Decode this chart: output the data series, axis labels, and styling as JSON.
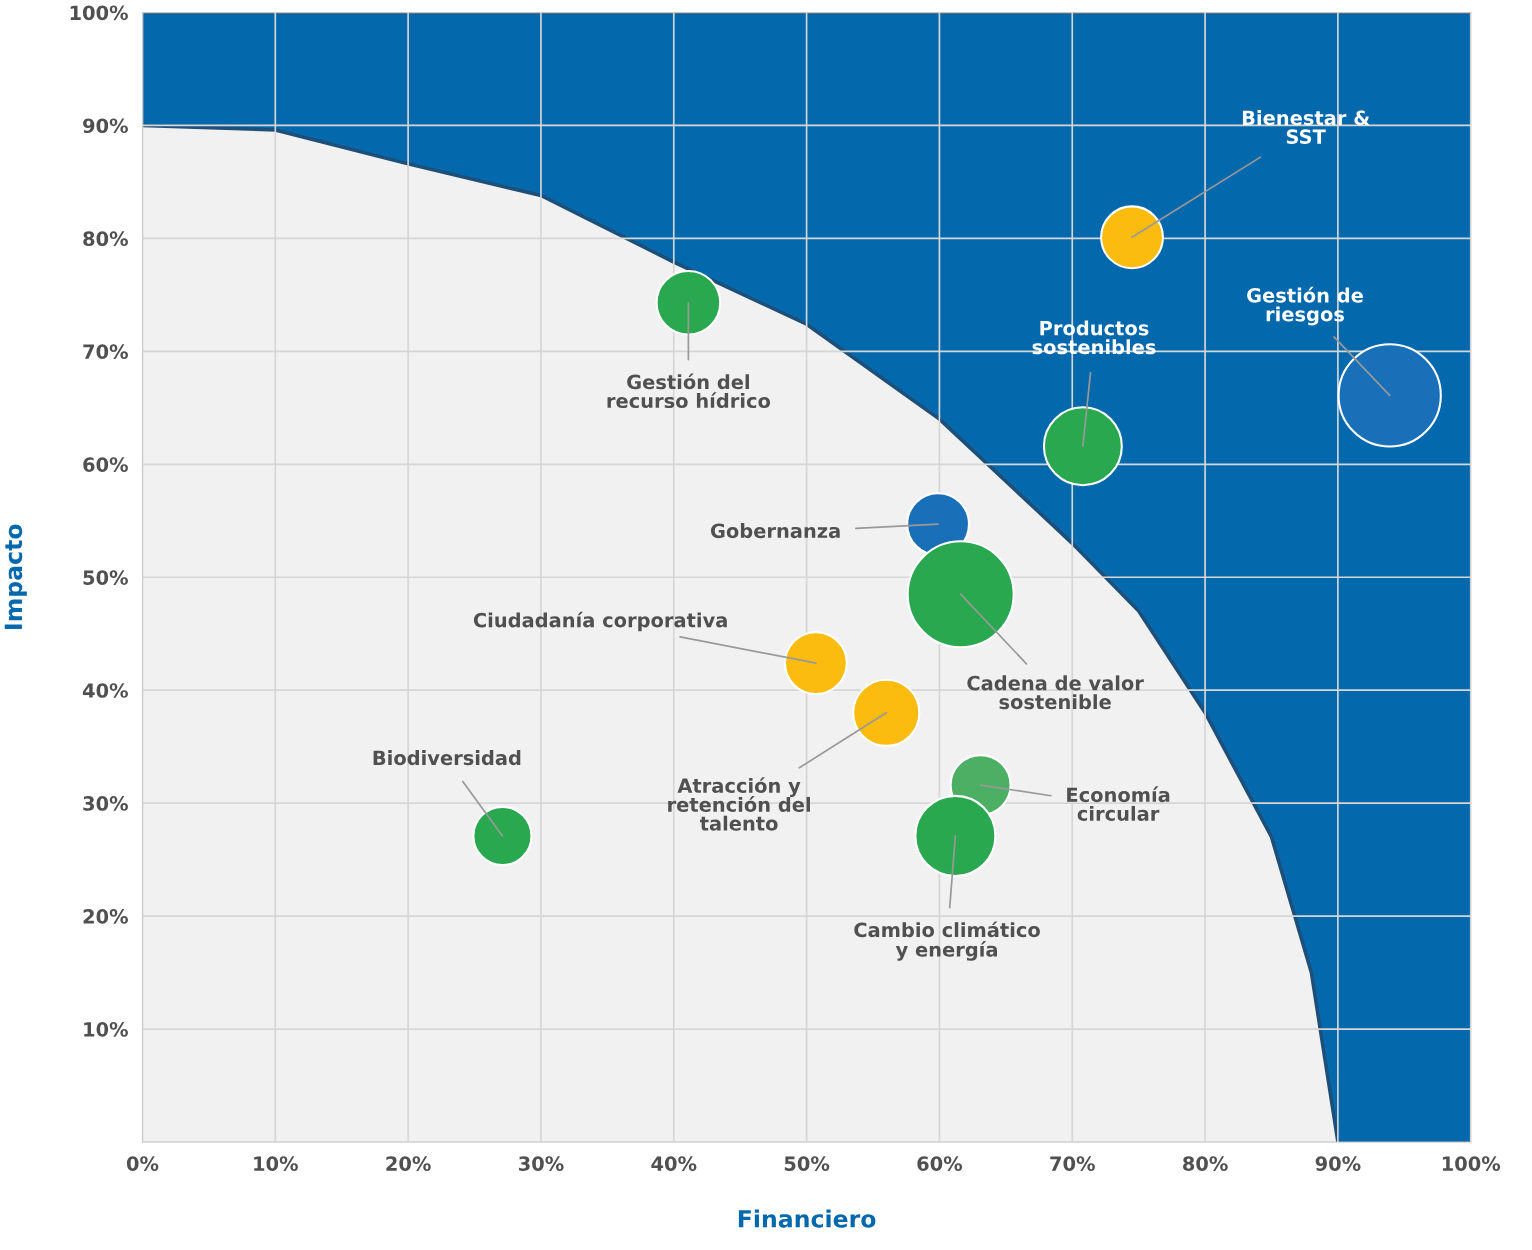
{
  "chart_data": {
    "type": "bubble",
    "xlabel": "Financiero",
    "ylabel": "Impacto",
    "xlim": [
      0,
      100
    ],
    "ylim": [
      0,
      100
    ],
    "xticks": [
      {
        "value": 0,
        "label": "0%"
      },
      {
        "value": 10,
        "label": "10%"
      },
      {
        "value": 20,
        "label": "20%"
      },
      {
        "value": 30,
        "label": "30%"
      },
      {
        "value": 40,
        "label": "40%"
      },
      {
        "value": 50,
        "label": "50%"
      },
      {
        "value": 60,
        "label": "60%"
      },
      {
        "value": 70,
        "label": "70%"
      },
      {
        "value": 80,
        "label": "80%"
      },
      {
        "value": 90,
        "label": "90%"
      },
      {
        "value": 100,
        "label": "100%"
      }
    ],
    "yticks": [
      {
        "value": 10,
        "label": "10%"
      },
      {
        "value": 20,
        "label": "20%"
      },
      {
        "value": 30,
        "label": "30%"
      },
      {
        "value": 40,
        "label": "40%"
      },
      {
        "value": 50,
        "label": "50%"
      },
      {
        "value": 60,
        "label": "60%"
      },
      {
        "value": 70,
        "label": "70%"
      },
      {
        "value": 80,
        "label": "80%"
      },
      {
        "value": 90,
        "label": "90%"
      },
      {
        "value": 100,
        "label": "100%"
      }
    ],
    "grid": true,
    "legend": false,
    "series": [
      {
        "type": "area",
        "color": "#0468ad",
        "x": [
          0,
          100
        ],
        "values": [
          100,
          100
        ]
      },
      {
        "type": "area",
        "color": "#f1f1f1",
        "x": [
          0,
          10,
          20,
          30,
          40,
          50,
          60,
          70,
          75,
          80,
          85,
          88,
          90
        ],
        "values": [
          90,
          89.6,
          86.6,
          83.8,
          77.9,
          72.4,
          64,
          53,
          47,
          38,
          27,
          15,
          0
        ]
      },
      {
        "name": "Gestión del\nrecurso hídrico",
        "color": "#2aa84f",
        "x": [
          41.1
        ],
        "values": [
          74.3
        ],
        "sizes": [
          0.36
        ]
      },
      {
        "name": "Bienestar &\nSST",
        "color": "#fbbc0f",
        "x": [
          74.5
        ],
        "values": [
          80.1
        ],
        "sizes": [
          0.34
        ]
      },
      {
        "name": "Gestión de\nriesgos",
        "color": "#1a6fb9",
        "x": [
          93.9
        ],
        "values": [
          66.1
        ],
        "sizes": [
          0.93
        ]
      },
      {
        "name": "Productos\nsostenibles",
        "color": "#2aa84f",
        "x": [
          70.8
        ],
        "values": [
          61.6
        ],
        "sizes": [
          0.54
        ]
      },
      {
        "name": "Gobernanza",
        "color": "#1a6fb9",
        "x": [
          59.9
        ],
        "values": [
          54.7
        ],
        "sizes": [
          0.34
        ]
      },
      {
        "name": "Cadena de valor\nsostenible",
        "color": "#2aa84f",
        "x": [
          61.6
        ],
        "values": [
          48.5
        ],
        "sizes": [
          1
        ]
      },
      {
        "name": "Ciudadanía corporativa",
        "color": "#fbbc0f",
        "x": [
          50.7
        ],
        "values": [
          42.4
        ],
        "sizes": [
          0.34
        ]
      },
      {
        "name": "Atracción y\nretención del\ntalento",
        "color": "#fbbc0f",
        "x": [
          56.0
        ],
        "values": [
          38.0
        ],
        "sizes": [
          0.39
        ]
      },
      {
        "name": "Economía\ncircular",
        "color": "#4caf63",
        "x": [
          63.1
        ],
        "values": [
          31.6
        ],
        "sizes": [
          0.32
        ]
      },
      {
        "name": "Cambio climático\ny energía",
        "color": "#2aa84f",
        "x": [
          61.2
        ],
        "values": [
          27.1
        ],
        "sizes": [
          0.57
        ]
      },
      {
        "name": "Biodiversidad",
        "color": "#2aa84f",
        "x": [
          27.1
        ],
        "values": [
          27.1
        ],
        "sizes": [
          0.3
        ]
      }
    ]
  }
}
